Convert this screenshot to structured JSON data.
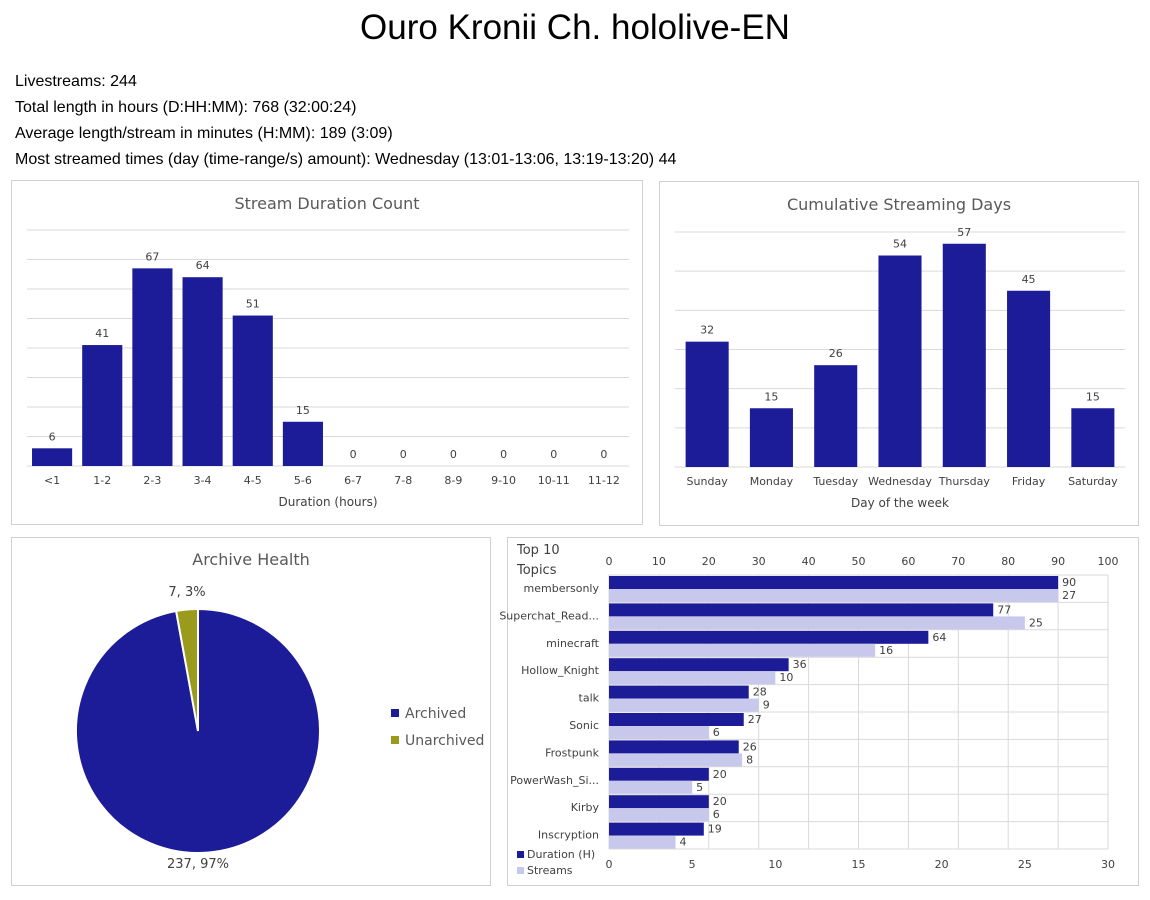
{
  "page": {
    "title": "Ouro Kronii Ch. hololive-EN",
    "stats": [
      "Livestreams: 244",
      "Total length in hours (D:HH:MM): 768 (32:00:24)",
      "Average length/stream in minutes (H:MM): 189 (3:09)",
      "Most streamed times (day (time-range/s) amount): Wednesday (13:01-13:06, 13:19-13:20) 44"
    ]
  },
  "colors": {
    "bar": "#1c1c99",
    "streams": "#c8c8ec",
    "unarchived": "#9a9a1c",
    "grid": "#d9d9d9"
  },
  "chart_data": [
    {
      "type": "bar",
      "title": "Stream Duration Count",
      "xlabel": "Duration (hours)",
      "ylabel": "",
      "categories": [
        "<1",
        "1-2",
        "2-3",
        "3-4",
        "4-5",
        "5-6",
        "6-7",
        "7-8",
        "8-9",
        "9-10",
        "10-11",
        "11-12"
      ],
      "values": [
        6,
        41,
        67,
        64,
        51,
        15,
        0,
        0,
        0,
        0,
        0,
        0
      ],
      "ylim": [
        0,
        80
      ],
      "grid": true,
      "data_labels": true
    },
    {
      "type": "bar",
      "title": "Cumulative Streaming Days",
      "xlabel": "Day of the week",
      "ylabel": "",
      "categories": [
        "Sunday",
        "Monday",
        "Tuesday",
        "Wednesday",
        "Thursday",
        "Friday",
        "Saturday"
      ],
      "values": [
        32,
        15,
        26,
        54,
        57,
        45,
        15
      ],
      "ylim": [
        0,
        60
      ],
      "grid": true,
      "data_labels": true
    },
    {
      "type": "pie",
      "title": "Archive Health",
      "labels": [
        "Archived",
        "Unarchived"
      ],
      "values": [
        237,
        7
      ],
      "data_labels": [
        "237, 97%",
        "7, 3%"
      ],
      "legend": "right"
    },
    {
      "type": "bar",
      "orientation": "horizontal",
      "title": "Top 10 Topics",
      "categories": [
        "membersonly",
        "Superchat_Read...",
        "minecraft",
        "Hollow_Knight",
        "talk",
        "Sonic",
        "Frostpunk",
        "PowerWash_Si...",
        "Kirby",
        "Inscryption"
      ],
      "series": [
        {
          "name": "Duration (H)",
          "axis": "top",
          "values": [
            90,
            77,
            64,
            36,
            28,
            27,
            26,
            20,
            20,
            19
          ]
        },
        {
          "name": "Streams",
          "axis": "bottom",
          "values": [
            27,
            25,
            16,
            10,
            9,
            6,
            8,
            5,
            6,
            4
          ]
        }
      ],
      "top_axis": {
        "range": [
          0,
          100
        ],
        "ticks": [
          0,
          10,
          20,
          30,
          40,
          50,
          60,
          70,
          80,
          90,
          100
        ]
      },
      "bottom_axis": {
        "range": [
          0,
          30
        ],
        "ticks": [
          0,
          5,
          10,
          15,
          20,
          25,
          30
        ]
      },
      "legend": "bottom-left",
      "grid": true,
      "data_labels": true
    }
  ]
}
